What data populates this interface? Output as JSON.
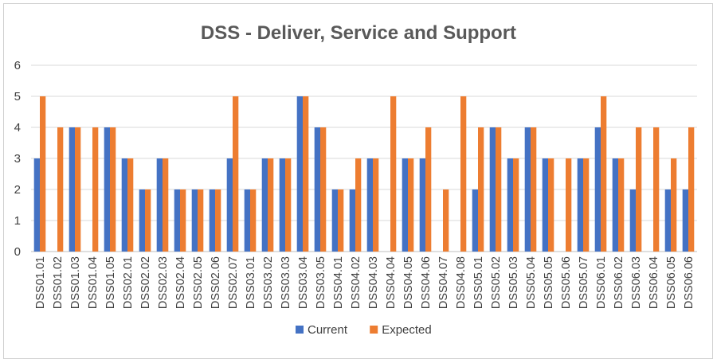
{
  "chart_data": {
    "type": "bar",
    "title": "DSS - Deliver, Service and Support",
    "xlabel": "",
    "ylabel": "",
    "ylim": [
      0,
      6
    ],
    "yticks": [
      0,
      1,
      2,
      3,
      4,
      5,
      6
    ],
    "grid": true,
    "legend_position": "bottom",
    "categories": [
      "DSS01.01",
      "DSS01.02",
      "DSS01.03",
      "DSS01.04",
      "DSS01.05",
      "DSS02.01",
      "DSS02.02",
      "DSS02.03",
      "DSS02.04",
      "DSS02.05",
      "DSS02.06",
      "DSS02.07",
      "DSS03.01",
      "DSS03.02",
      "DSS03.03",
      "DSS03.04",
      "DSS03.05",
      "DSS04.01",
      "DSS04.02",
      "DSS04.03",
      "DSS04.04",
      "DSS04.05",
      "DSS04.06",
      "DSS04.07",
      "DSS04.08",
      "DSS05.01",
      "DSS05.02",
      "DSS05.03",
      "DSS05.04",
      "DSS05.05",
      "DSS05.06",
      "DSS05.07",
      "DSS06.01",
      "DSS06.02",
      "DSS06.03",
      "DSS06.04",
      "DSS06.05",
      "DSS06.06"
    ],
    "series": [
      {
        "name": "Current",
        "color": "#4472C4",
        "values": [
          3,
          0,
          4,
          0,
          4,
          3,
          2,
          3,
          2,
          2,
          2,
          3,
          2,
          3,
          3,
          5,
          4,
          2,
          2,
          3,
          0,
          3,
          3,
          0,
          0,
          2,
          4,
          3,
          4,
          3,
          0,
          3,
          4,
          3,
          2,
          0,
          2,
          2
        ]
      },
      {
        "name": "Expected",
        "color": "#ED7D31",
        "values": [
          5,
          4,
          4,
          4,
          4,
          3,
          2,
          3,
          2,
          2,
          2,
          5,
          2,
          3,
          3,
          5,
          4,
          2,
          3,
          3,
          5,
          3,
          4,
          2,
          5,
          4,
          4,
          3,
          4,
          3,
          3,
          3,
          5,
          3,
          4,
          4,
          3,
          4
        ]
      }
    ]
  }
}
